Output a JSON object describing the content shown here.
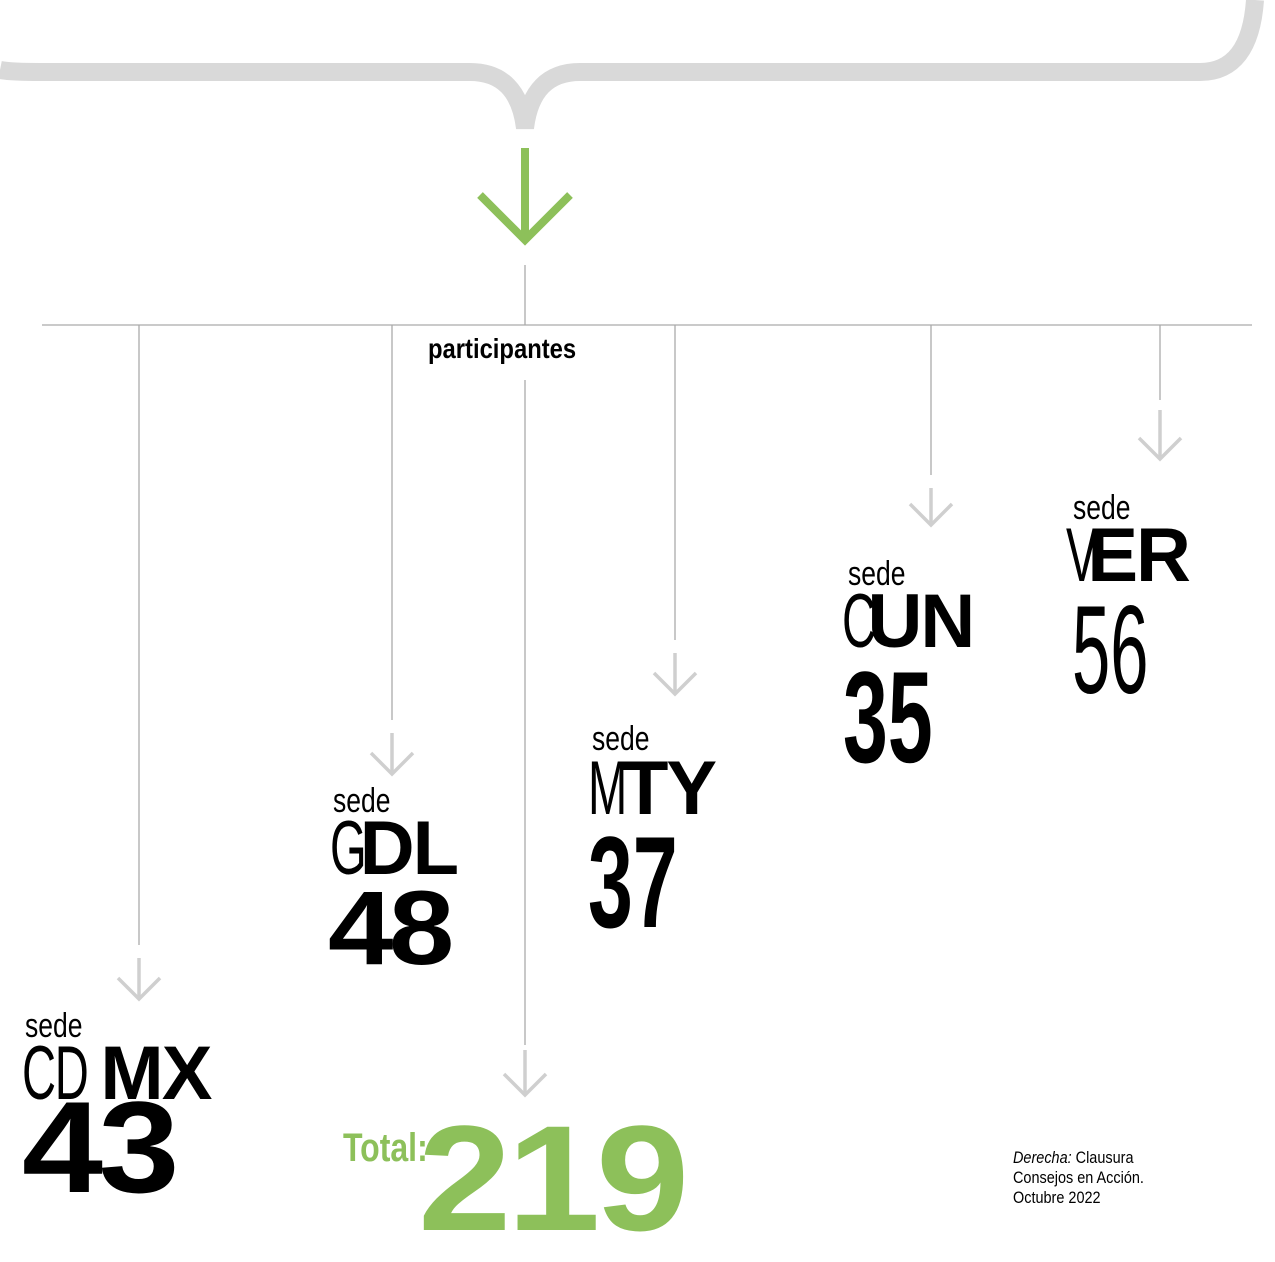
{
  "label": "participantes",
  "sedes": [
    {
      "prefix": "sede",
      "code_light": "CD",
      "code_bold": "MX",
      "value": "43"
    },
    {
      "prefix": "sede",
      "code_light": "G",
      "code_bold": "DL",
      "value": "48"
    },
    {
      "prefix": "sede",
      "code_light": "M",
      "code_bold": "TY",
      "value": "37"
    },
    {
      "prefix": "sede",
      "code_light": "C",
      "code_bold": "UN",
      "value": "35"
    },
    {
      "prefix": "sede",
      "code_light": "V",
      "code_bold": "ER",
      "value": "56"
    }
  ],
  "total": {
    "label": "Total:",
    "value": "219"
  },
  "caption": {
    "emphasis": "Derecha:",
    "text": "Clausura",
    "line2": "Consejos en Acción.",
    "line3": "Octubre 2022"
  }
}
